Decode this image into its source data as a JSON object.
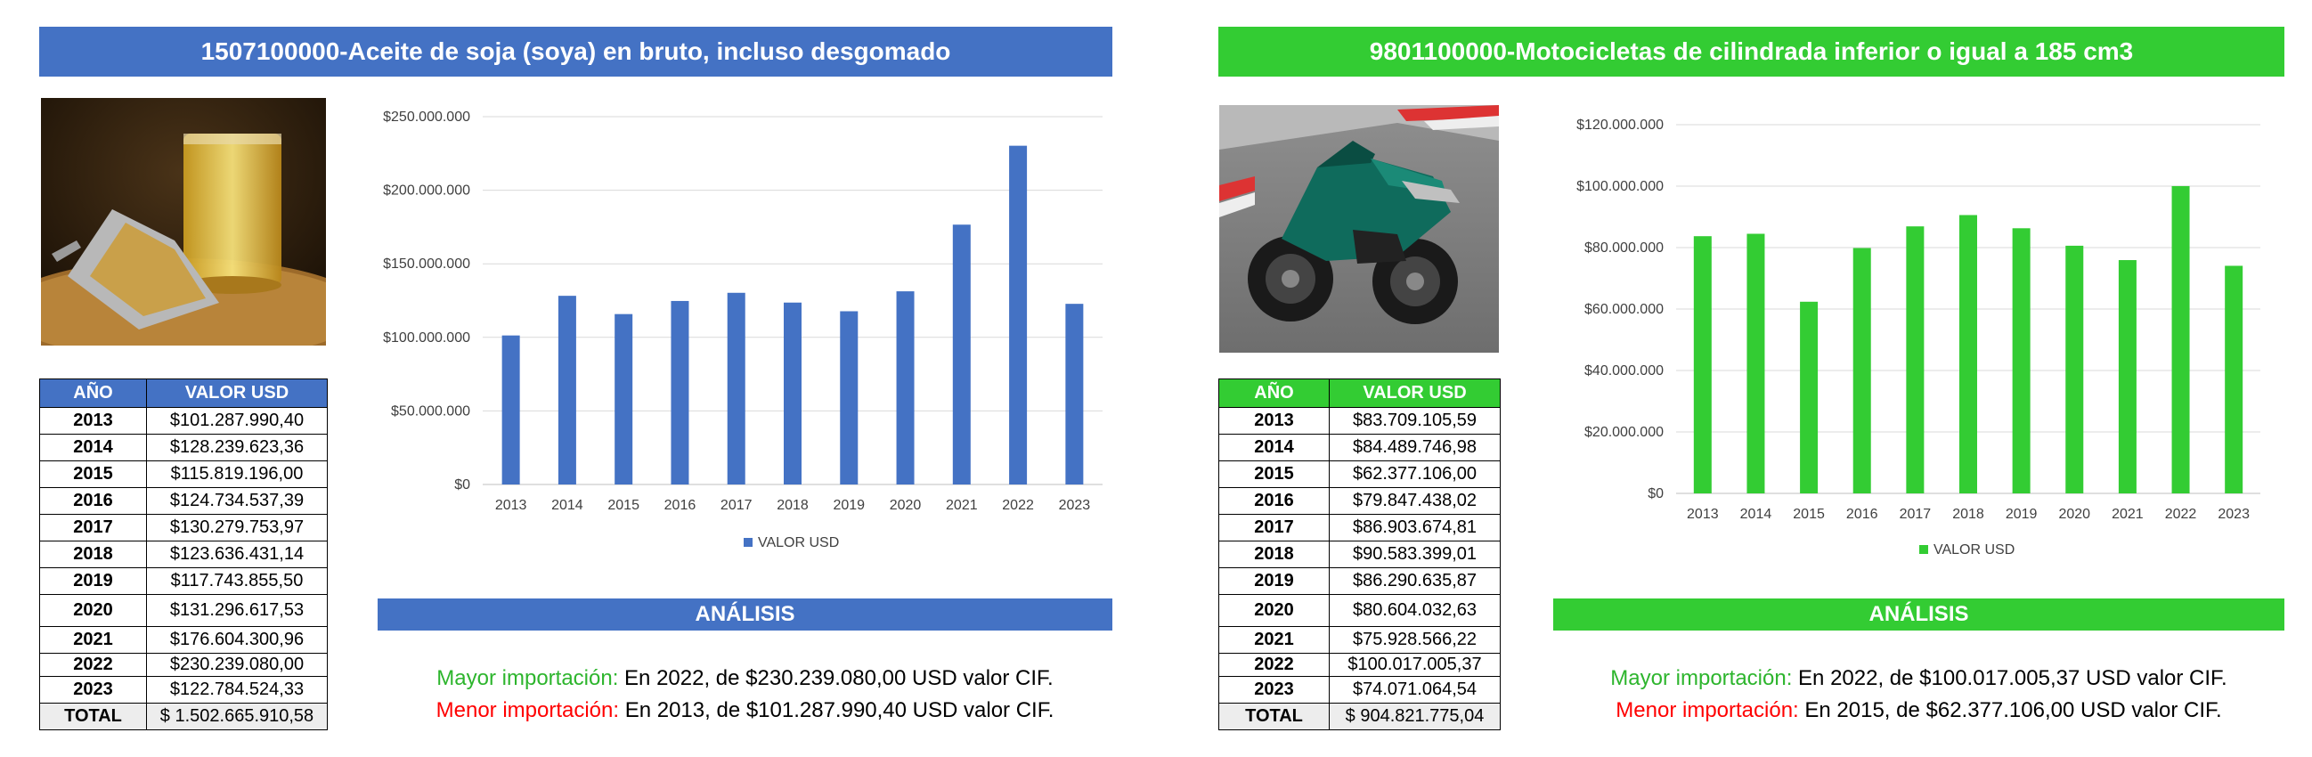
{
  "colors": {
    "blue": "#4472c4",
    "green": "#33cc33",
    "label_green": "#2db52d",
    "label_red": "#ff0000"
  },
  "left": {
    "title": "1507100000-Aceite de soja (soya) en bruto, incluso desgomado",
    "table": {
      "headers": [
        "AÑO",
        "VALOR USD"
      ],
      "rows": [
        [
          "2013",
          "$101.287.990,40"
        ],
        [
          "2014",
          "$128.239.623,36"
        ],
        [
          "2015",
          "$115.819.196,00"
        ],
        [
          "2016",
          "$124.734.537,39"
        ],
        [
          "2017",
          "$130.279.753,97"
        ],
        [
          "2018",
          "$123.636.431,14"
        ],
        [
          "2019",
          "$117.743.855,50"
        ],
        [
          "2020",
          "$131.296.617,53"
        ],
        [
          "2021",
          "$176.604.300,96"
        ],
        [
          "2022",
          "$230.239.080,00"
        ],
        [
          "2023",
          "$122.784.524,33"
        ]
      ],
      "total_label": "TOTAL",
      "total_value": "$ 1.502.665.910,58"
    },
    "analysis": {
      "heading": "ANÁLISIS",
      "mayor_label": "Mayor importación:",
      "mayor_text": " En 2022, de $230.239.080,00 USD valor CIF.",
      "menor_label": "Menor importación:",
      "menor_text": " En 2013, de $101.287.990,40 USD valor CIF."
    }
  },
  "right": {
    "title": "9801100000-Motocicletas de cilindrada inferior o igual a 185 cm3",
    "table": {
      "headers": [
        "AÑO",
        "VALOR USD"
      ],
      "rows": [
        [
          "2013",
          "$83.709.105,59"
        ],
        [
          "2014",
          "$84.489.746,98"
        ],
        [
          "2015",
          "$62.377.106,00"
        ],
        [
          "2016",
          "$79.847.438,02"
        ],
        [
          "2017",
          "$86.903.674,81"
        ],
        [
          "2018",
          "$90.583.399,01"
        ],
        [
          "2019",
          "$86.290.635,87"
        ],
        [
          "2020",
          "$80.604.032,63"
        ],
        [
          "2021",
          "$75.928.566,22"
        ],
        [
          "2022",
          "$100.017.005,37"
        ],
        [
          "2023",
          "$74.071.064,54"
        ]
      ],
      "total_label": "TOTAL",
      "total_value": "$ 904.821.775,04"
    },
    "analysis": {
      "heading": "ANÁLISIS",
      "mayor_label": "Mayor importación:",
      "mayor_text": " En 2022, de $100.017.005,37 USD valor CIF.",
      "menor_label": "Menor importación:",
      "menor_text": " En 2015, de $62.377.106,00 USD valor CIF."
    }
  },
  "chart_data": [
    {
      "type": "bar",
      "title": "",
      "xlabel": "",
      "ylabel": "",
      "categories": [
        "2013",
        "2014",
        "2015",
        "2016",
        "2017",
        "2018",
        "2019",
        "2020",
        "2021",
        "2022",
        "2023"
      ],
      "series": [
        {
          "name": "VALOR USD",
          "color": "#4472c4",
          "values": [
            101287990.4,
            128239623.36,
            115819196.0,
            124734537.39,
            130279753.97,
            123636431.14,
            117743855.5,
            131296617.53,
            176604300.96,
            230239080.0,
            122784524.33
          ]
        }
      ],
      "ylim": [
        0,
        250000000
      ],
      "yticks": [
        0,
        50000000,
        100000000,
        150000000,
        200000000,
        250000000
      ],
      "ytick_labels": [
        "$0",
        "$50.000.000",
        "$100.000.000",
        "$150.000.000",
        "$200.000.000",
        "$250.000.000"
      ],
      "grid": true,
      "legend": "bottom"
    },
    {
      "type": "bar",
      "title": "",
      "xlabel": "",
      "ylabel": "",
      "categories": [
        "2013",
        "2014",
        "2015",
        "2016",
        "2017",
        "2018",
        "2019",
        "2020",
        "2021",
        "2022",
        "2023"
      ],
      "series": [
        {
          "name": "VALOR USD",
          "color": "#33cc33",
          "values": [
            83709105.59,
            84489746.98,
            62377106.0,
            79847438.02,
            86903674.81,
            90583399.01,
            86290635.87,
            80604032.63,
            75928566.22,
            100017005.37,
            74071064.54
          ]
        }
      ],
      "ylim": [
        0,
        120000000
      ],
      "yticks": [
        0,
        20000000,
        40000000,
        60000000,
        80000000,
        100000000,
        120000000
      ],
      "ytick_labels": [
        "$0",
        "$20.000.000",
        "$40.000.000",
        "$60.000.000",
        "$80.000.000",
        "$100.000.000",
        "$120.000.000"
      ],
      "grid": true,
      "legend": "bottom"
    }
  ]
}
